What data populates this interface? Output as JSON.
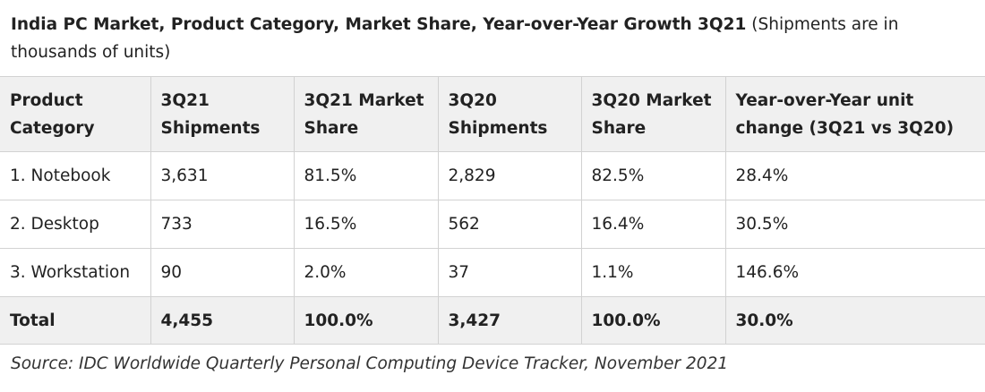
{
  "caption": {
    "title": "India PC Market, Product Category, Market Share, Year-over-Year Growth 3Q21",
    "note": " (Shipments are in thousands of units)"
  },
  "table": {
    "headers": [
      "Product Category",
      "3Q21 Shipments",
      "3Q21 Market Share",
      "3Q20 Shipments",
      "3Q20 Market Share",
      "Year-over-Year unit change (3Q21 vs 3Q20)"
    ],
    "rows": [
      [
        "1. Notebook",
        "3,631",
        "81.5%",
        "2,829",
        "82.5%",
        "28.4%"
      ],
      [
        "2. Desktop",
        "733",
        "16.5%",
        "562",
        "16.4%",
        "30.5%"
      ],
      [
        "3. Workstation",
        "90",
        "2.0%",
        "37",
        "1.1%",
        "146.6%"
      ]
    ],
    "total": [
      "Total",
      "4,455",
      "100.0%",
      "3,427",
      "100.0%",
      "30.0%"
    ]
  },
  "source": "Source: IDC Worldwide Quarterly Personal Computing Device Tracker, November 2021",
  "colors": {
    "header_background": "#f0f0f0",
    "border": "#d2d2d2",
    "text": "#222222"
  }
}
